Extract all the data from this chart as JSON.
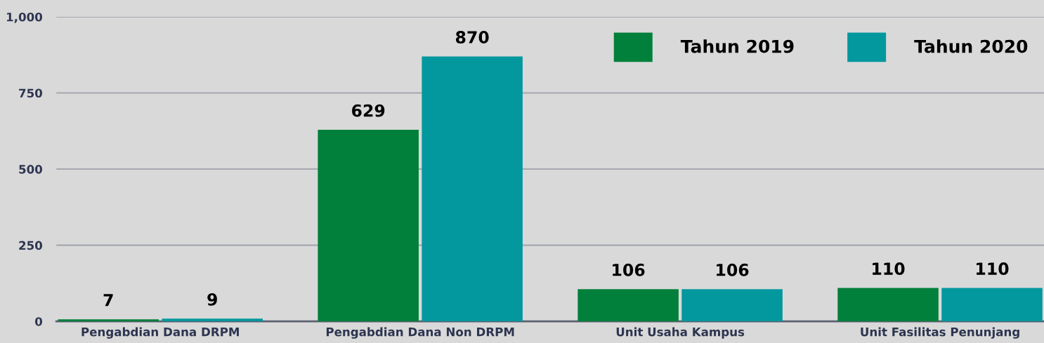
{
  "chart_data": {
    "type": "bar",
    "categories": [
      "Pengabdian Dana DRPM",
      "Pengabdian Dana Non DRPM",
      "Unit Usaha Kampus",
      "Unit Fasilitas Penunjang"
    ],
    "series": [
      {
        "name": "Tahun 2019",
        "color": "#00803a",
        "values": [
          7,
          629,
          106,
          110
        ]
      },
      {
        "name": "Tahun 2020",
        "color": "#03989e",
        "values": [
          9,
          870,
          106,
          110
        ]
      }
    ],
    "ylim": [
      0,
      1000
    ],
    "yticks": [
      0,
      250,
      500,
      750,
      {
        "value": 1000,
        "label": "1,000"
      }
    ],
    "grid": "y",
    "legend": "top right",
    "data_labels": true
  }
}
